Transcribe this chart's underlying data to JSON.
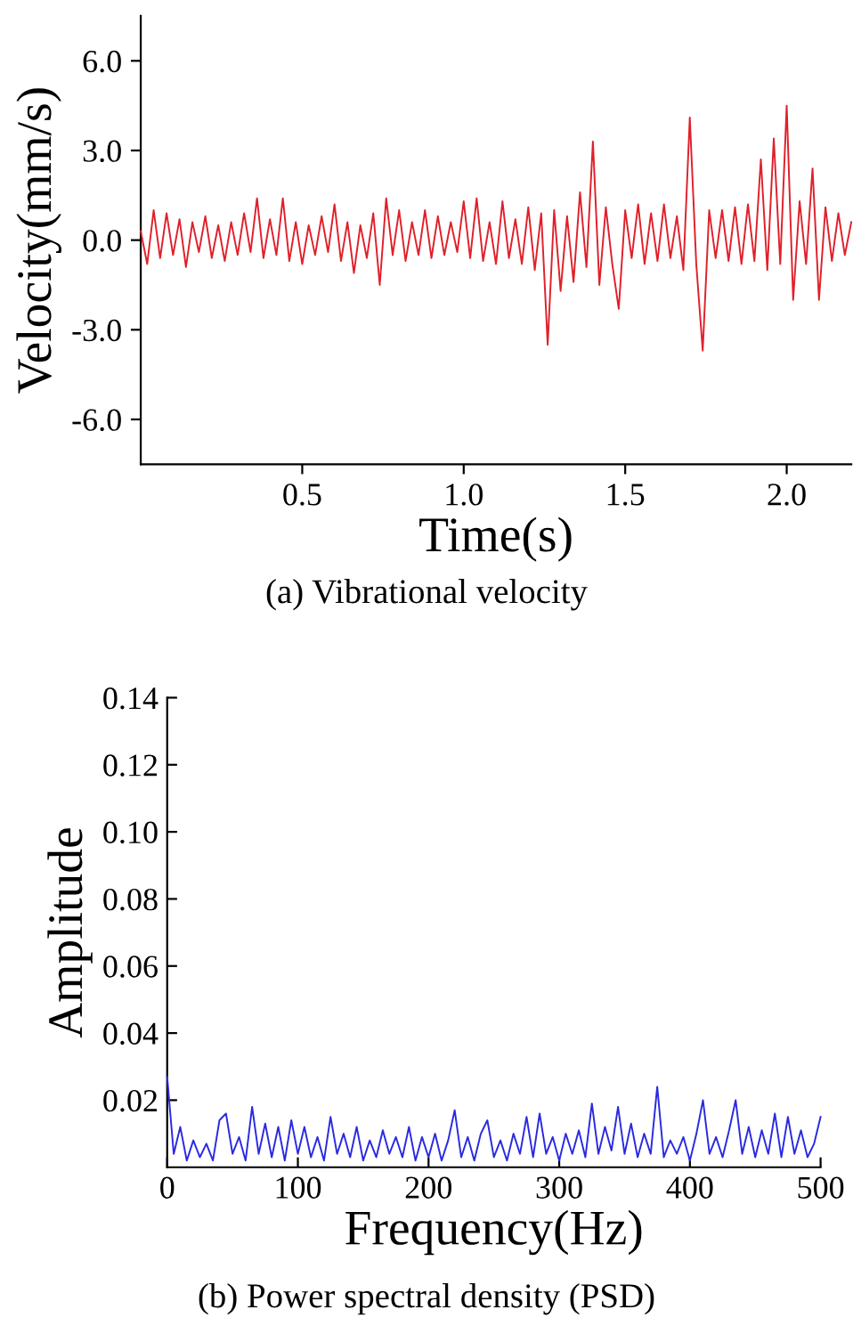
{
  "chart_data": [
    {
      "type": "line",
      "xlabel": "Time(s)",
      "ylabel": "Velocity(mm/s)",
      "annotations": [
        "(a) Vibrational velocity"
      ],
      "xlim": [
        0,
        2.2
      ],
      "xticks": [
        0.5,
        {
          "value": 1,
          "label": "1.0"
        },
        1.5,
        {
          "value": 2,
          "label": "2.0"
        }
      ],
      "ylim": [
        -7.5,
        7.5
      ],
      "yticks": [
        {
          "value": -6,
          "label": "-6.0"
        },
        {
          "value": -3,
          "label": "-3.0"
        },
        {
          "value": 0,
          "label": "0.0"
        },
        {
          "value": 3,
          "label": "3.0"
        },
        {
          "value": 6,
          "label": "6.0"
        }
      ],
      "grid": false,
      "legend": false,
      "series": [
        {
          "color": "#e0202a",
          "x": [
            0.0,
            0.02,
            0.04,
            0.06,
            0.08,
            0.1,
            0.12,
            0.14,
            0.16,
            0.18,
            0.2,
            0.22,
            0.24,
            0.26,
            0.28,
            0.3,
            0.32,
            0.34,
            0.36,
            0.38,
            0.4,
            0.42,
            0.44,
            0.46,
            0.48,
            0.5,
            0.52,
            0.54,
            0.56,
            0.58,
            0.6,
            0.62,
            0.64,
            0.66,
            0.68,
            0.7,
            0.72,
            0.74,
            0.76,
            0.78,
            0.8,
            0.82,
            0.84,
            0.86,
            0.88,
            0.9,
            0.92,
            0.94,
            0.96,
            0.98,
            1.0,
            1.02,
            1.04,
            1.06,
            1.08,
            1.1,
            1.12,
            1.14,
            1.16,
            1.18,
            1.2,
            1.22,
            1.24,
            1.26,
            1.28,
            1.3,
            1.32,
            1.34,
            1.36,
            1.38,
            1.4,
            1.42,
            1.44,
            1.46,
            1.48,
            1.5,
            1.52,
            1.54,
            1.56,
            1.58,
            1.6,
            1.62,
            1.64,
            1.66,
            1.68,
            1.7,
            1.72,
            1.74,
            1.76,
            1.78,
            1.8,
            1.82,
            1.84,
            1.86,
            1.88,
            1.9,
            1.92,
            1.94,
            1.96,
            1.98,
            2.0,
            2.02,
            2.04,
            2.06,
            2.08,
            2.1,
            2.12,
            2.14,
            2.16,
            2.18,
            2.2
          ],
          "values": [
            0.3,
            -0.8,
            1.0,
            -0.6,
            0.9,
            -0.5,
            0.7,
            -0.9,
            0.6,
            -0.4,
            0.8,
            -0.6,
            0.5,
            -0.7,
            0.6,
            -0.5,
            0.9,
            -0.4,
            1.4,
            -0.6,
            0.7,
            -0.5,
            1.4,
            -0.7,
            0.6,
            -0.8,
            0.5,
            -0.5,
            0.8,
            -0.4,
            1.2,
            -0.7,
            0.6,
            -1.1,
            0.5,
            -0.6,
            0.9,
            -1.5,
            1.4,
            -0.5,
            1.0,
            -0.7,
            0.6,
            -0.5,
            1.0,
            -0.6,
            0.8,
            -0.5,
            0.6,
            -0.4,
            1.3,
            -0.6,
            1.4,
            -0.7,
            0.6,
            -0.8,
            1.3,
            -0.6,
            0.7,
            -0.8,
            1.1,
            -1.0,
            0.9,
            -3.5,
            1.0,
            -1.7,
            0.8,
            -1.4,
            1.6,
            -0.9,
            3.3,
            -1.5,
            1.1,
            -0.8,
            -2.3,
            1.0,
            -0.6,
            1.2,
            -0.8,
            0.9,
            -0.7,
            1.2,
            -0.6,
            0.8,
            -1.0,
            4.1,
            -0.8,
            -3.7,
            1.0,
            -0.6,
            1.0,
            -0.7,
            1.1,
            -0.8,
            1.2,
            -0.7,
            2.7,
            -1.0,
            3.4,
            -0.8,
            4.5,
            -2.0,
            1.3,
            -0.8,
            2.4,
            -2.0,
            1.1,
            -0.7,
            0.9,
            -0.5,
            0.6
          ]
        }
      ]
    },
    {
      "type": "line",
      "xlabel": "Frequency(Hz)",
      "ylabel": "Amplitude",
      "annotations": [
        "(b) Power spectral density (PSD)"
      ],
      "xlim": [
        0,
        500
      ],
      "xticks": [
        0,
        100,
        200,
        300,
        400,
        500
      ],
      "ylim": [
        0,
        0.14
      ],
      "yticks": [
        0.02,
        0.04,
        0.06,
        0.08,
        {
          "value": 0.1,
          "label": "0.10"
        },
        0.12,
        0.14
      ],
      "grid": false,
      "legend": false,
      "series": [
        {
          "color": "#2a2ae0",
          "x": [
            0,
            5,
            10,
            15,
            20,
            25,
            30,
            35,
            40,
            45,
            50,
            55,
            60,
            65,
            70,
            75,
            80,
            85,
            90,
            95,
            100,
            105,
            110,
            115,
            120,
            125,
            130,
            135,
            140,
            145,
            150,
            155,
            160,
            165,
            170,
            175,
            180,
            185,
            190,
            195,
            200,
            205,
            210,
            215,
            220,
            225,
            230,
            235,
            240,
            245,
            250,
            255,
            260,
            265,
            270,
            275,
            280,
            285,
            290,
            295,
            300,
            305,
            310,
            315,
            320,
            325,
            330,
            335,
            340,
            345,
            350,
            355,
            360,
            365,
            370,
            375,
            380,
            385,
            390,
            395,
            400,
            405,
            410,
            415,
            420,
            425,
            430,
            435,
            440,
            445,
            450,
            455,
            460,
            465,
            470,
            475,
            480,
            485,
            490,
            495,
            500
          ],
          "values": [
            0.027,
            0.004,
            0.012,
            0.002,
            0.008,
            0.003,
            0.007,
            0.002,
            0.014,
            0.016,
            0.004,
            0.009,
            0.002,
            0.018,
            0.004,
            0.013,
            0.003,
            0.012,
            0.002,
            0.014,
            0.004,
            0.012,
            0.003,
            0.009,
            0.002,
            0.015,
            0.004,
            0.01,
            0.003,
            0.012,
            0.002,
            0.008,
            0.003,
            0.011,
            0.004,
            0.009,
            0.003,
            0.012,
            0.002,
            0.009,
            0.003,
            0.01,
            0.002,
            0.008,
            0.017,
            0.003,
            0.009,
            0.002,
            0.01,
            0.014,
            0.003,
            0.008,
            0.002,
            0.01,
            0.004,
            0.015,
            0.003,
            0.016,
            0.004,
            0.009,
            0.002,
            0.01,
            0.004,
            0.011,
            0.003,
            0.019,
            0.004,
            0.012,
            0.005,
            0.018,
            0.004,
            0.013,
            0.003,
            0.01,
            0.004,
            0.024,
            0.003,
            0.008,
            0.004,
            0.009,
            0.002,
            0.01,
            0.02,
            0.004,
            0.009,
            0.003,
            0.011,
            0.02,
            0.004,
            0.012,
            0.003,
            0.011,
            0.004,
            0.016,
            0.003,
            0.015,
            0.004,
            0.011,
            0.003,
            0.007,
            0.015
          ]
        }
      ]
    }
  ]
}
